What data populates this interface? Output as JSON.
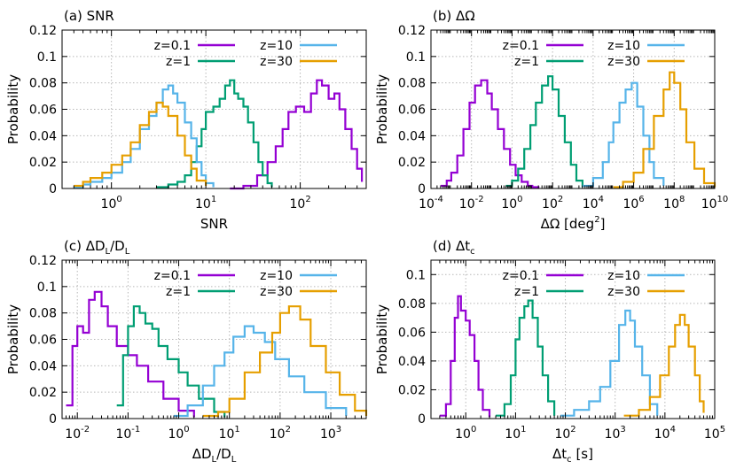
{
  "colors": {
    "z=0.1": "#9400d3",
    "z=1": "#009e73",
    "z=10": "#56b4e9",
    "z=30": "#e69f00"
  },
  "chart_data": [
    {
      "id": "a",
      "type": "line",
      "title": "(a) SNR",
      "xlabel": "SNR",
      "ylabel": "Probability",
      "xscale": "log",
      "xlim": [
        0.3,
        500
      ],
      "ylim": [
        0,
        0.12
      ],
      "xticks": [
        {
          "v": 1,
          "label": "10^0"
        },
        {
          "v": 10,
          "label": "10^1"
        },
        {
          "v": 100,
          "label": "10^2"
        }
      ],
      "yticks": [
        {
          "v": 0,
          "label": "0"
        },
        {
          "v": 0.02,
          "label": "0.02"
        },
        {
          "v": 0.04,
          "label": "0.04"
        },
        {
          "v": 0.06,
          "label": "0.06"
        },
        {
          "v": 0.08,
          "label": "0.08"
        },
        {
          "v": 0.1,
          "label": "0.1"
        },
        {
          "v": 0.12,
          "label": "0.12"
        }
      ],
      "grid": true,
      "legend": "top-right",
      "series": [
        {
          "name": "z=0.1",
          "x": [
            18,
            25,
            35,
            45,
            55,
            65,
            75,
            90,
            110,
            130,
            150,
            170,
            200,
            230,
            260,
            300,
            350,
            400,
            450
          ],
          "y": [
            0,
            0.002,
            0.01,
            0.02,
            0.032,
            0.045,
            0.058,
            0.062,
            0.058,
            0.072,
            0.082,
            0.078,
            0.068,
            0.072,
            0.06,
            0.045,
            0.03,
            0.015,
            0.005
          ]
        },
        {
          "name": "z=1",
          "x": [
            3,
            4,
            5,
            6,
            7,
            8,
            9,
            10,
            12,
            14,
            16,
            18,
            20,
            22,
            25,
            28,
            32,
            36,
            40,
            45,
            50
          ],
          "y": [
            0.001,
            0.003,
            0.005,
            0.01,
            0.02,
            0.032,
            0.045,
            0.058,
            0.062,
            0.068,
            0.078,
            0.082,
            0.072,
            0.068,
            0.062,
            0.05,
            0.035,
            0.02,
            0.01,
            0.004,
            0.001
          ]
        },
        {
          "name": "z=10",
          "x": [
            0.4,
            0.5,
            0.6,
            0.8,
            1.0,
            1.3,
            1.6,
            2.0,
            2.5,
            3.0,
            3.5,
            4.0,
            4.5,
            5,
            6,
            7,
            8,
            9,
            10,
            12
          ],
          "y": [
            0.001,
            0.003,
            0.005,
            0.008,
            0.012,
            0.02,
            0.03,
            0.045,
            0.055,
            0.065,
            0.075,
            0.078,
            0.072,
            0.065,
            0.05,
            0.038,
            0.02,
            0.01,
            0.004,
            0.001
          ]
        },
        {
          "name": "z=30",
          "x": [
            0.4,
            0.5,
            0.6,
            0.8,
            1.0,
            1.3,
            1.6,
            2.0,
            2.5,
            3.0,
            3.5,
            4.0,
            5,
            6,
            7,
            8,
            10
          ],
          "y": [
            0.002,
            0.005,
            0.008,
            0.012,
            0.018,
            0.025,
            0.035,
            0.048,
            0.058,
            0.065,
            0.062,
            0.055,
            0.04,
            0.025,
            0.015,
            0.006,
            0.002
          ]
        }
      ]
    },
    {
      "id": "b",
      "type": "line",
      "title": "(b) ΔΩ",
      "xlabel": "ΔΩ [deg²]",
      "ylabel": "Probability",
      "xscale": "log",
      "xlim": [
        0.0001,
        10000000000.0
      ],
      "ylim": [
        0,
        0.12
      ],
      "xticks": [
        {
          "v": 0.0001,
          "label": "10^-4"
        },
        {
          "v": 0.01,
          "label": "10^-2"
        },
        {
          "v": 1,
          "label": "10^0"
        },
        {
          "v": 100,
          "label": "10^2"
        },
        {
          "v": 10000,
          "label": "10^4"
        },
        {
          "v": 1000000,
          "label": "10^6"
        },
        {
          "v": 100000000,
          "label": "10^8"
        },
        {
          "v": 10000000000,
          "label": "10^10"
        }
      ],
      "yticks": [
        {
          "v": 0,
          "label": "0"
        },
        {
          "v": 0.02,
          "label": "0.02"
        },
        {
          "v": 0.04,
          "label": "0.04"
        },
        {
          "v": 0.06,
          "label": "0.06"
        },
        {
          "v": 0.08,
          "label": "0.08"
        },
        {
          "v": 0.1,
          "label": "0.1"
        },
        {
          "v": 0.12,
          "label": "0.12"
        }
      ],
      "grid": true,
      "legend": "top-right",
      "series": [
        {
          "name": "z=0.1",
          "x": [
            0.0003,
            0.0006,
            0.001,
            0.002,
            0.004,
            0.008,
            0.015,
            0.03,
            0.06,
            0.1,
            0.2,
            0.4,
            0.8,
            1.5,
            3,
            6,
            10,
            20
          ],
          "y": [
            0.002,
            0.006,
            0.012,
            0.025,
            0.045,
            0.065,
            0.078,
            0.082,
            0.072,
            0.06,
            0.045,
            0.03,
            0.018,
            0.01,
            0.005,
            0.002,
            0.001,
            0
          ]
        },
        {
          "name": "z=1",
          "x": [
            0.5,
            1,
            2,
            4,
            8,
            15,
            30,
            60,
            100,
            200,
            400,
            800,
            1500,
            3000
          ],
          "y": [
            0.002,
            0.006,
            0.015,
            0.03,
            0.048,
            0.065,
            0.078,
            0.085,
            0.075,
            0.055,
            0.035,
            0.018,
            0.006,
            0.001
          ]
        },
        {
          "name": "z=10",
          "x": [
            3000,
            10000,
            30000,
            60000,
            100000,
            200000,
            400000,
            800000,
            1500000,
            3000000,
            6000000,
            10000000,
            30000000
          ],
          "y": [
            0.002,
            0.008,
            0.02,
            0.035,
            0.05,
            0.065,
            0.075,
            0.08,
            0.062,
            0.04,
            0.02,
            0.008,
            0.002
          ]
        },
        {
          "name": "z=30",
          "x": [
            100000,
            300000,
            1000000,
            3000000,
            10000000,
            30000000,
            60000000,
            100000000,
            200000000,
            400000000,
            1000000000,
            3000000000,
            10000000000
          ],
          "y": [
            0.001,
            0.005,
            0.012,
            0.03,
            0.055,
            0.075,
            0.088,
            0.08,
            0.06,
            0.035,
            0.015,
            0.004,
            0.001
          ]
        }
      ]
    },
    {
      "id": "c",
      "type": "line",
      "title": "(c) ΔD_L/D_L",
      "xlabel": "ΔD_L/D_L",
      "ylabel": "Probability",
      "xscale": "log",
      "xlim": [
        0.005,
        5000
      ],
      "ylim": [
        0,
        0.12
      ],
      "xticks": [
        {
          "v": 0.01,
          "label": "10^-2"
        },
        {
          "v": 0.1,
          "label": "10^-1"
        },
        {
          "v": 1,
          "label": "10^0"
        },
        {
          "v": 10,
          "label": "10^1"
        },
        {
          "v": 100,
          "label": "10^2"
        },
        {
          "v": 1000,
          "label": "10^3"
        }
      ],
      "yticks": [
        {
          "v": 0,
          "label": "0"
        },
        {
          "v": 0.02,
          "label": "0.02"
        },
        {
          "v": 0.04,
          "label": "0.04"
        },
        {
          "v": 0.06,
          "label": "0.06"
        },
        {
          "v": 0.08,
          "label": "0.08"
        },
        {
          "v": 0.1,
          "label": "0.1"
        },
        {
          "v": 0.12,
          "label": "0.12"
        }
      ],
      "grid": true,
      "legend": "top-right",
      "series": [
        {
          "name": "z=0.1",
          "x": [
            0.006,
            0.008,
            0.01,
            0.013,
            0.017,
            0.022,
            0.03,
            0.04,
            0.06,
            0.1,
            0.15,
            0.25,
            0.5,
            1,
            2
          ],
          "y": [
            0.01,
            0.055,
            0.07,
            0.065,
            0.09,
            0.096,
            0.085,
            0.07,
            0.055,
            0.048,
            0.04,
            0.028,
            0.015,
            0.006,
            0.001
          ]
        },
        {
          "name": "z=1",
          "x": [
            0.06,
            0.08,
            0.1,
            0.13,
            0.17,
            0.22,
            0.3,
            0.4,
            0.6,
            1,
            1.5,
            2.5,
            5,
            8
          ],
          "y": [
            0.01,
            0.048,
            0.07,
            0.085,
            0.08,
            0.072,
            0.068,
            0.055,
            0.045,
            0.035,
            0.025,
            0.015,
            0.005,
            0.001
          ]
        },
        {
          "name": "z=10",
          "x": [
            0.8,
            1.5,
            3,
            5,
            8,
            12,
            20,
            30,
            50,
            80,
            150,
            300,
            800,
            2000
          ],
          "y": [
            0.002,
            0.01,
            0.025,
            0.04,
            0.05,
            0.062,
            0.07,
            0.065,
            0.058,
            0.045,
            0.032,
            0.02,
            0.008,
            0.002
          ]
        },
        {
          "name": "z=30",
          "x": [
            3,
            6,
            10,
            20,
            40,
            70,
            100,
            150,
            250,
            400,
            800,
            1500,
            3000,
            5000
          ],
          "y": [
            0.002,
            0.005,
            0.015,
            0.035,
            0.05,
            0.065,
            0.08,
            0.085,
            0.075,
            0.055,
            0.035,
            0.018,
            0.006,
            0.002
          ]
        }
      ]
    },
    {
      "id": "d",
      "type": "line",
      "title": "(d) Δt_c",
      "xlabel": "Δt_c [s]",
      "ylabel": "Probability",
      "xscale": "log",
      "xlim": [
        0.2,
        100000
      ],
      "ylim": [
        0,
        0.11
      ],
      "xticks": [
        {
          "v": 1,
          "label": "10^0"
        },
        {
          "v": 10,
          "label": "10^1"
        },
        {
          "v": 100,
          "label": "10^2"
        },
        {
          "v": 1000,
          "label": "10^3"
        },
        {
          "v": 10000,
          "label": "10^4"
        },
        {
          "v": 100000,
          "label": "10^5"
        }
      ],
      "yticks": [
        {
          "v": 0,
          "label": "0"
        },
        {
          "v": 0.02,
          "label": "0.02"
        },
        {
          "v": 0.04,
          "label": "0.04"
        },
        {
          "v": 0.06,
          "label": "0.06"
        },
        {
          "v": 0.08,
          "label": "0.08"
        },
        {
          "v": 0.1,
          "label": "0.1"
        }
      ],
      "grid": true,
      "legend": "top-right",
      "series": [
        {
          "name": "z=0.1",
          "x": [
            0.3,
            0.4,
            0.5,
            0.6,
            0.7,
            0.8,
            1.0,
            1.2,
            1.5,
            1.8,
            2.2,
            3
          ],
          "y": [
            0.002,
            0.01,
            0.04,
            0.07,
            0.085,
            0.075,
            0.068,
            0.058,
            0.04,
            0.02,
            0.006,
            0.001
          ]
        },
        {
          "name": "z=1",
          "x": [
            4,
            6,
            8,
            10,
            12,
            15,
            18,
            22,
            28,
            35,
            45,
            60
          ],
          "y": [
            0.002,
            0.01,
            0.03,
            0.055,
            0.07,
            0.078,
            0.082,
            0.07,
            0.05,
            0.03,
            0.012,
            0.002
          ]
        },
        {
          "name": "z=10",
          "x": [
            80,
            150,
            300,
            500,
            800,
            1200,
            1600,
            2000,
            2500,
            3500,
            5000,
            7000
          ],
          "y": [
            0.002,
            0.006,
            0.012,
            0.022,
            0.04,
            0.065,
            0.075,
            0.068,
            0.05,
            0.03,
            0.01,
            0.002
          ]
        },
        {
          "name": "z=30",
          "x": [
            1500,
            3000,
            5000,
            8000,
            12000,
            16000,
            20000,
            25000,
            30000,
            40000,
            50000,
            60000
          ],
          "y": [
            0.002,
            0.006,
            0.015,
            0.03,
            0.05,
            0.065,
            0.072,
            0.065,
            0.05,
            0.03,
            0.012,
            0.004
          ]
        }
      ]
    }
  ]
}
